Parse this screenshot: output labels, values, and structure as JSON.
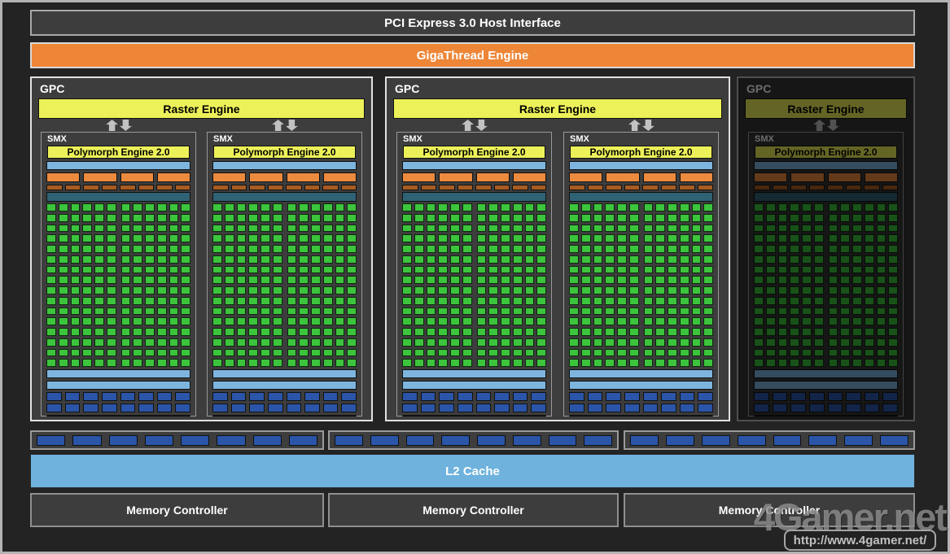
{
  "header": {
    "pci_label": "PCI Express 3.0 Host Interface",
    "gigathread_label": "GigaThread Engine"
  },
  "gpcs": [
    {
      "label": "GPC",
      "raster_label": "Raster Engine",
      "enabled": true,
      "smx_count": 2
    },
    {
      "label": "GPC",
      "raster_label": "Raster Engine",
      "enabled": true,
      "smx_count": 2
    },
    {
      "label": "GPC",
      "raster_label": "Raster Engine",
      "enabled": false,
      "smx_count": 1
    }
  ],
  "smx": {
    "label": "SMX",
    "polymorph_label": "Polymorph Engine 2.0",
    "core_rows": 16,
    "core_cols": 12,
    "cores_per_smx": 192,
    "scheduler_segments": 4,
    "dispatch_segments": 8,
    "lsu_rows": 2,
    "lsu_segments_per_row": 8
  },
  "memory_interface": {
    "groups": 3,
    "segments_per_group": 8
  },
  "l2_cache": {
    "label": "L2 Cache"
  },
  "memory_controllers": [
    "Memory Controller",
    "Memory Controller",
    "Memory Controller"
  ],
  "watermark": {
    "brand": "4Gamer.net",
    "url": "http://www.4gamer.net/"
  },
  "colors": {
    "panel_gray": "#3d3d3d",
    "orange": "#ee8637",
    "yellow": "#edf159",
    "light_blue": "#7db5df",
    "l2_blue": "#6eb2dd",
    "seg_orange": "#ec8a3e",
    "seg_brown": "#a85c22",
    "teal": "#2f6274",
    "core_green": "#3cc43c",
    "seg_dark_blue": "#2a55a8",
    "hatch_blue": "#a9c7e7",
    "arrow_gray": "#c2c2c2"
  }
}
